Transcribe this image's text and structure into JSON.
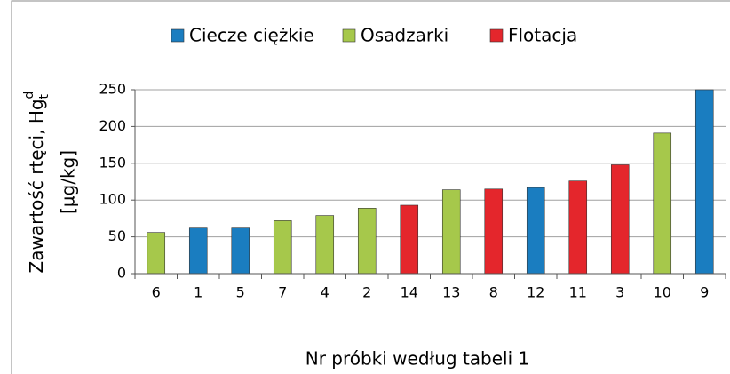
{
  "chart_data": {
    "type": "bar",
    "x_label": "Nr próbki według tabeli 1",
    "y_label": {
      "text": "Zawartość rtęci, Hg",
      "sup": "d",
      "sub": "t",
      "unit": "[µg/kg]"
    },
    "categories": [
      "6",
      "1",
      "5",
      "7",
      "4",
      "2",
      "14",
      "13",
      "8",
      "12",
      "11",
      "3",
      "10",
      "9"
    ],
    "series": [
      {
        "name": "Ciecze ciężkie",
        "color": "#1a7dc0",
        "values": [
          null,
          62,
          62,
          null,
          null,
          null,
          null,
          null,
          null,
          117,
          null,
          null,
          null,
          250
        ]
      },
      {
        "name": "Osadzarki",
        "color": "#a6c84b",
        "values": [
          56,
          null,
          null,
          72,
          79,
          89,
          null,
          114,
          null,
          null,
          null,
          null,
          191,
          null
        ]
      },
      {
        "name": "Flotacja",
        "color": "#e4262c",
        "values": [
          null,
          null,
          null,
          null,
          null,
          null,
          93,
          null,
          115,
          null,
          126,
          148,
          null,
          null
        ]
      }
    ],
    "ylim": [
      0,
      250
    ],
    "yticks": [
      0,
      50,
      100,
      150,
      200,
      250
    ],
    "grid": true
  }
}
